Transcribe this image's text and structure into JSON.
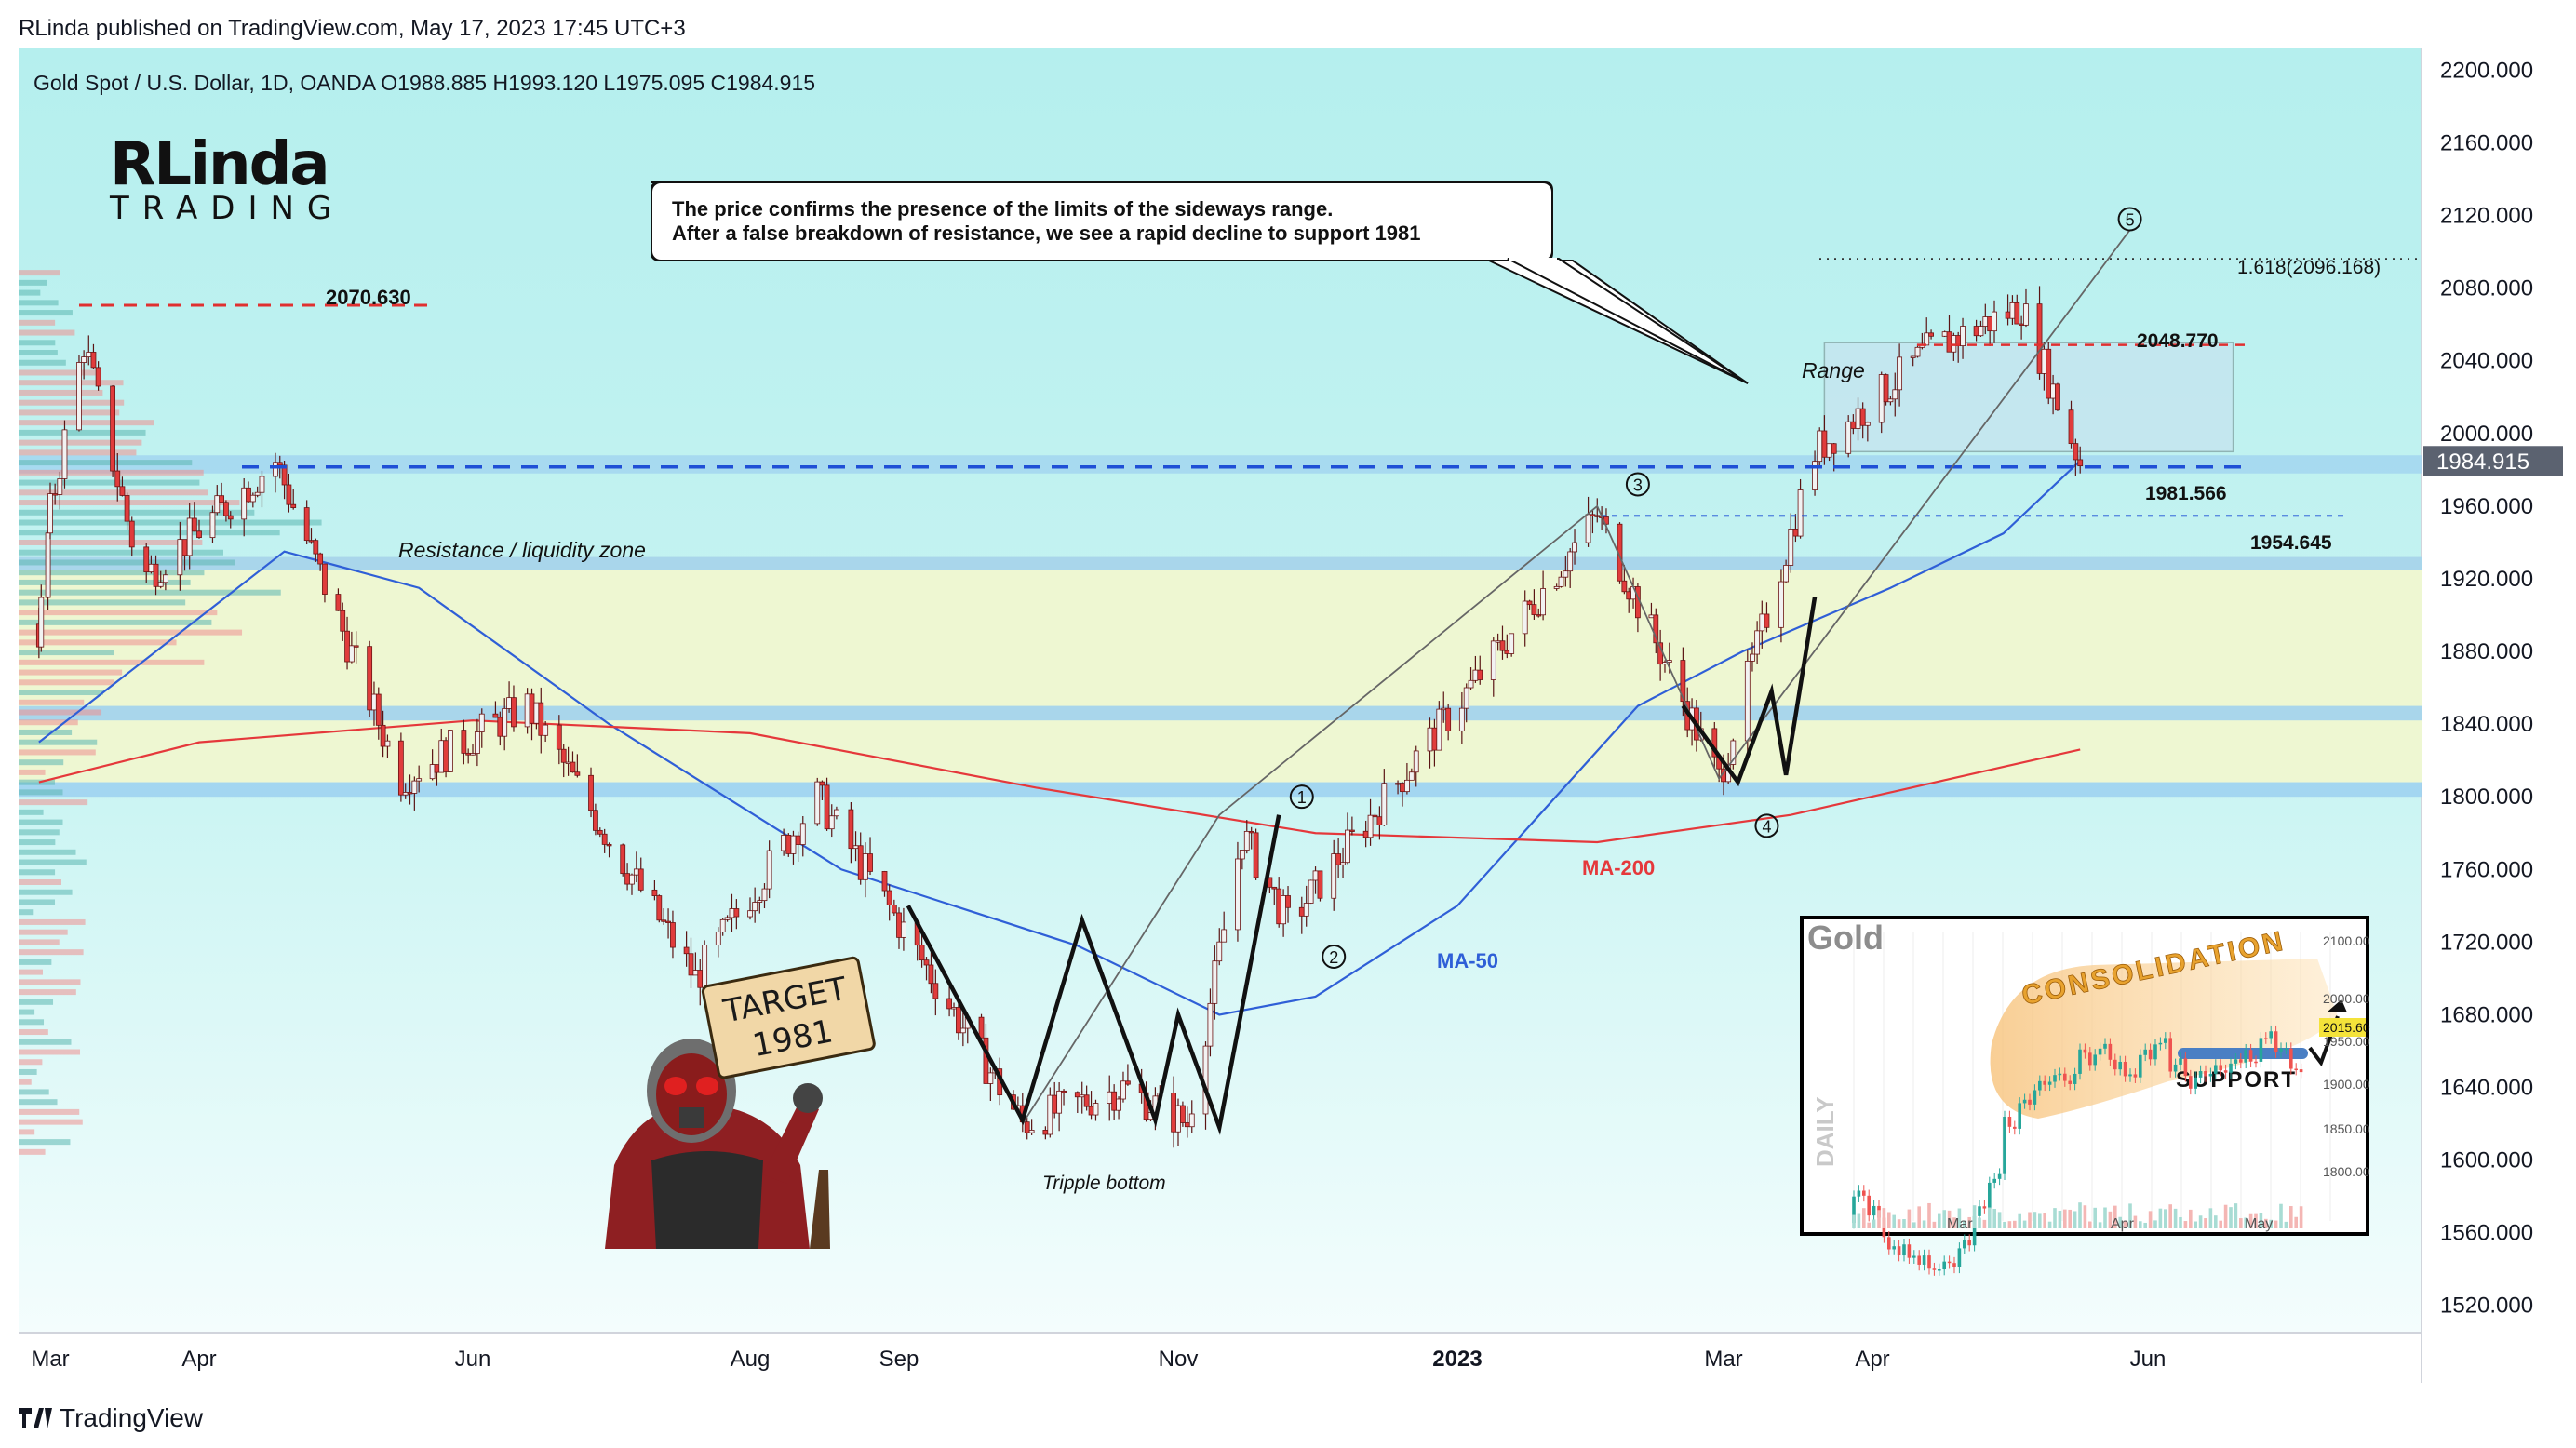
{
  "header": {
    "publisher": "RLinda published on TradingView.com, May 17, 2023 17:45 UTC+3"
  },
  "footer": {
    "logo_text": "TradingView"
  },
  "brand": {
    "line1": "RLinda",
    "line2": "TRADING"
  },
  "colors": {
    "background": "#b8f0f0",
    "up": "#26a69a",
    "down": "#ef5350",
    "candle": "#e03c3c",
    "ma50": "#2f5fd7",
    "ma200": "#e5383b",
    "zone_blue": "#9cd0f0",
    "zone_green": "#eef7d2",
    "range_box": "#c5e6ef",
    "dashed_level": "#1f4fd6"
  },
  "chart_data": {
    "type": "candlestick",
    "symbol_line": "Gold Spot / U.S. Dollar, 1D, OANDA  O1988.885  H1993.120  L1975.095  C1984.915",
    "last_price": "1984.915",
    "y_axis": {
      "ylim": [
        1505,
        2212
      ],
      "ticks": [
        "2200.000",
        "2160.000",
        "2120.000",
        "2080.000",
        "2040.000",
        "2000.000",
        "1960.000",
        "1920.000",
        "1880.000",
        "1840.000",
        "1800.000",
        "1760.000",
        "1720.000",
        "1680.000",
        "1640.000",
        "1600.000",
        "1560.000",
        "1520.000"
      ]
    },
    "x_axis": {
      "labels": [
        "Mar",
        "Apr",
        "Jun",
        "Aug",
        "Sep",
        "Nov",
        "2023",
        "Mar",
        "Apr",
        "Jun"
      ],
      "bold_label": "2023"
    },
    "price_path_monthly": [
      {
        "t": "2022-03",
        "price": 1935
      },
      {
        "t": "2022-04",
        "price": 1955
      },
      {
        "t": "2022-06",
        "price": 1840
      },
      {
        "t": "2022-08",
        "price": 1780
      },
      {
        "t": "2022-09",
        "price": 1680
      },
      {
        "t": "2022-11",
        "price": 1780
      },
      {
        "t": "2023-01",
        "price": 1930
      },
      {
        "t": "2023-03",
        "price": 1850
      },
      {
        "t": "2023-04",
        "price": 2010
      },
      {
        "t": "2023-05",
        "price": 1985
      }
    ],
    "levels": [
      {
        "label": "2070.630",
        "value": 2070.63,
        "style": "red-dashed"
      },
      {
        "label": "2048.770",
        "value": 2048.77,
        "style": "red-dashed"
      },
      {
        "label": "1981.566",
        "value": 1981.566,
        "style": "blue-dashed"
      },
      {
        "label": "1954.645",
        "value": 1954.645,
        "style": "blue-dotted"
      },
      {
        "label": "1.618(2096.168)",
        "value": 2096.168,
        "style": "black-dotted"
      }
    ],
    "zones": [
      {
        "label": "Resistance / liquidity zone",
        "low": 1925,
        "high": 1932
      },
      {
        "low": 1842,
        "high": 1850
      },
      {
        "low": 1800,
        "high": 1808
      }
    ],
    "annotations": {
      "range_label": "Range",
      "tripple_bottom": "Tripple bottom",
      "ma50": "MA-50",
      "ma200": "MA-200",
      "waves": [
        "1",
        "2",
        "3",
        "4",
        "5"
      ],
      "callout": [
        "The price confirms the presence of the limits of the sideways range.",
        "After a false breakdown of resistance, we see a rapid decline to support 1981"
      ],
      "sign": [
        "TARGET",
        "1981"
      ]
    },
    "inset": {
      "title": "Gold",
      "side_label": "DAILY",
      "consolidation": "CONSOLIDATION",
      "support": "SUPPORT",
      "yticks": [
        "2100.00",
        "2000.00",
        "1950.00",
        "1900.00",
        "1850.00",
        "1800.00"
      ],
      "price_tag": "2015.60",
      "xticks": [
        "Mar",
        "Apr",
        "May"
      ]
    }
  }
}
